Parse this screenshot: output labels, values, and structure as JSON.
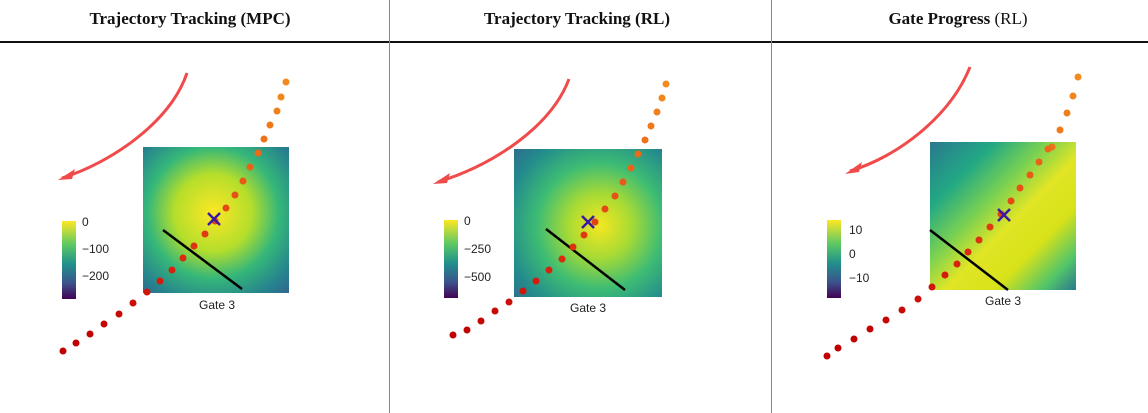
{
  "columns": [
    {
      "title_bold": "Trajectory Tracking (MPC)",
      "title_rest": "",
      "gate_label": "Gate 3",
      "colorbar_ticks": [
        "0",
        "−100",
        "−200"
      ],
      "heatmap": "tracking-mpc"
    },
    {
      "title_bold": "Trajectory Tracking (RL)",
      "title_rest": "",
      "gate_label": "Gate 3",
      "colorbar_ticks": [
        "0",
        "−250",
        "−500"
      ],
      "heatmap": "tracking-rl"
    },
    {
      "title_bold": "Gate Progress",
      "title_rest": " (RL)",
      "gate_label": "Gate 3",
      "colorbar_ticks": [
        "10",
        "0",
        "−10"
      ],
      "heatmap": "gate-progress"
    }
  ],
  "colors": {
    "arrow": "#f04a4a",
    "trajectory_start": "#c00000",
    "trajectory_end": "#f28a1e",
    "marker": "#3a1aa0",
    "gate": "#000000"
  },
  "icons": [
    "arrow-icon",
    "x-marker-icon"
  ]
}
